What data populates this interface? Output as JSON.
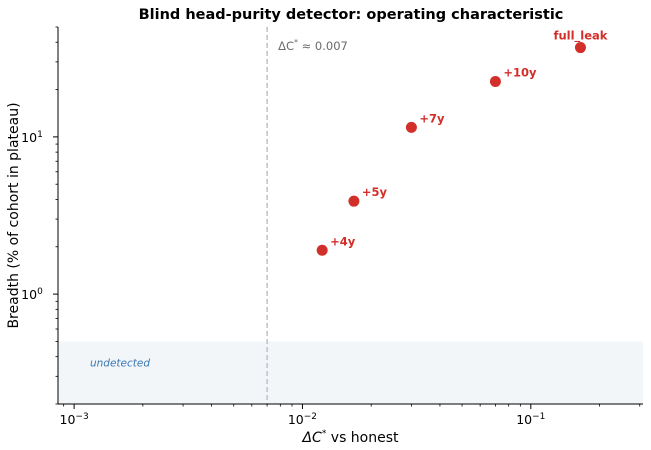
{
  "chart_data": {
    "type": "scatter",
    "title": "Blind head-purity detector: operating characteristic",
    "xlabel_parts": [
      "ΔC",
      "*",
      " vs honest"
    ],
    "ylabel": "Breadth (% of cohort in plateau)",
    "xscale": "log",
    "yscale": "log",
    "xlim": [
      0.00085,
      0.31
    ],
    "ylim": [
      0.2,
      50
    ],
    "xticks": [
      {
        "value": 0.001,
        "base": "10",
        "exp": "−3"
      },
      {
        "value": 0.01,
        "base": "10",
        "exp": "−2"
      },
      {
        "value": 0.1,
        "base": "10",
        "exp": "−1"
      }
    ],
    "yticks": [
      {
        "value": 1,
        "base": "10",
        "exp": "0"
      },
      {
        "value": 10,
        "base": "10",
        "exp": "1"
      }
    ],
    "grid": false,
    "threshold": {
      "x": 0.007,
      "label_parts": [
        "ΔC",
        "*",
        " ≈ 0.007"
      ],
      "color": "#aab4bf"
    },
    "undetected_region": {
      "y_top": 0.5,
      "label": "undetected",
      "fill": "#f3f6f9",
      "label_color": "#3a78b5"
    },
    "point_color": "#d32f2a",
    "points": [
      {
        "label": "+4y",
        "x": 0.0122,
        "y": 1.9
      },
      {
        "label": "+5y",
        "x": 0.0168,
        "y": 3.9
      },
      {
        "label": "+7y",
        "x": 0.03,
        "y": 11.5
      },
      {
        "label": "+10y",
        "x": 0.07,
        "y": 22.5
      },
      {
        "label": "full_leak",
        "x": 0.165,
        "y": 37
      }
    ]
  }
}
